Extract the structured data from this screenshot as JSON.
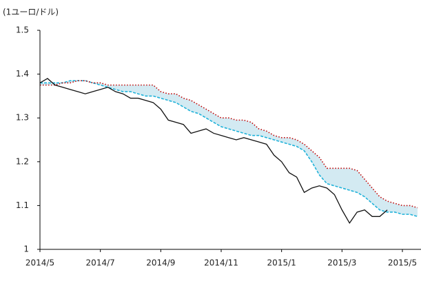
{
  "chart_data": {
    "type": "line",
    "title": "(1ユーロ/ドル)",
    "categories": [
      "2014/5",
      null,
      null,
      null,
      null,
      null,
      null,
      null,
      "2014/7",
      null,
      null,
      null,
      null,
      null,
      null,
      null,
      "2014/9",
      null,
      null,
      null,
      null,
      null,
      null,
      null,
      "2014/11",
      null,
      null,
      null,
      null,
      null,
      null,
      null,
      "2015/1",
      null,
      null,
      null,
      null,
      null,
      null,
      null,
      "2015/3",
      null,
      null,
      null,
      null,
      null,
      null,
      null,
      "2015/5",
      null,
      null
    ],
    "series": [
      {
        "color": "#111111",
        "style": "solid",
        "values": [
          1.38,
          1.39,
          1.375,
          1.37,
          1.365,
          1.36,
          1.355,
          1.36,
          1.365,
          1.37,
          1.36,
          1.355,
          1.345,
          1.345,
          1.34,
          1.335,
          1.32,
          1.295,
          1.29,
          1.285,
          1.265,
          1.27,
          1.275,
          1.265,
          1.26,
          1.255,
          1.25,
          1.255,
          1.25,
          1.245,
          1.24,
          1.215,
          1.2,
          1.175,
          1.165,
          1.13,
          1.14,
          1.145,
          1.14,
          1.125,
          1.09,
          1.06,
          1.085,
          1.09,
          1.075,
          1.075,
          1.09,
          null,
          null,
          null,
          null
        ]
      },
      {
        "color": "#c00000",
        "style": "dotted",
        "values": [
          1.375,
          1.375,
          1.375,
          1.38,
          1.38,
          1.385,
          1.385,
          1.38,
          1.38,
          1.375,
          1.375,
          1.375,
          1.375,
          1.375,
          1.375,
          1.375,
          1.36,
          1.355,
          1.355,
          1.345,
          1.34,
          1.33,
          1.32,
          1.31,
          1.3,
          1.3,
          1.295,
          1.295,
          1.29,
          1.275,
          1.27,
          1.26,
          1.255,
          1.255,
          1.25,
          1.24,
          1.225,
          1.21,
          1.185,
          1.185,
          1.185,
          1.185,
          1.18,
          1.16,
          1.14,
          1.12,
          1.11,
          1.105,
          1.1,
          1.1,
          1.095
        ]
      },
      {
        "color": "#1fb2d9",
        "style": "dashed",
        "values": [
          1.38,
          1.38,
          1.38,
          1.38,
          1.385,
          1.385,
          1.385,
          1.38,
          1.375,
          1.37,
          1.365,
          1.36,
          1.36,
          1.355,
          1.35,
          1.35,
          1.345,
          1.34,
          1.335,
          1.325,
          1.315,
          1.31,
          1.3,
          1.29,
          1.28,
          1.275,
          1.27,
          1.265,
          1.26,
          1.26,
          1.255,
          1.25,
          1.245,
          1.24,
          1.235,
          1.225,
          1.2,
          1.17,
          1.15,
          1.145,
          1.14,
          1.135,
          1.13,
          1.12,
          1.105,
          1.09,
          1.085,
          1.085,
          1.08,
          1.08,
          1.075
        ]
      }
    ],
    "band_color": "#d3eaf2",
    "ylim": [
      1,
      1.5
    ],
    "yticks": [
      1,
      1.1,
      1.2,
      1.3,
      1.4,
      1.5
    ]
  }
}
